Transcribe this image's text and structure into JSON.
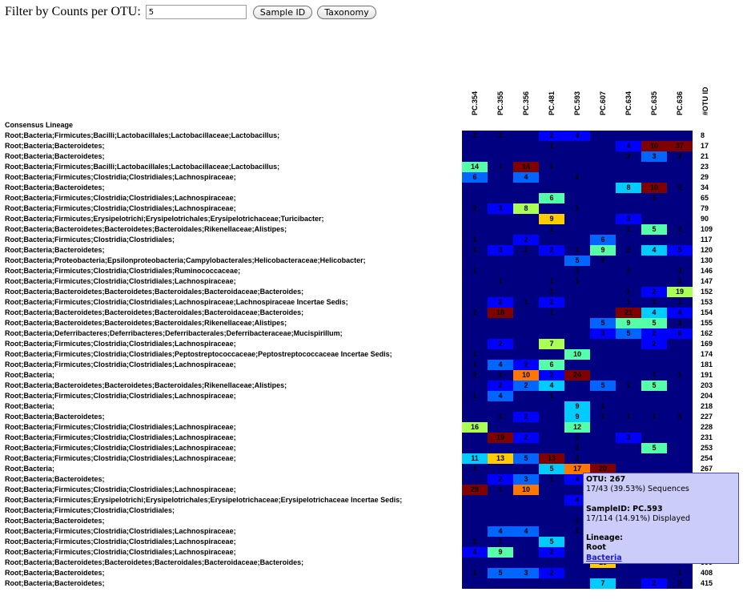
{
  "filter": {
    "label": "Filter by Counts per OTU:",
    "value": "5",
    "sample_id_button": "Sample ID",
    "taxonomy_button": "Taxonomy"
  },
  "table": {
    "lineage_header": "Consensus Lineage",
    "otu_header": "#OTU ID",
    "samples": [
      "PC.354",
      "PC.355",
      "PC.356",
      "PC.481",
      "PC.593",
      "PC.607",
      "PC.634",
      "PC.635",
      "PC.636"
    ],
    "rows": [
      {
        "lineage": "Root;Bacteria;Firmicutes;Bacilli;Lactobacillales;Lactobacillaceae;Lactobacillus;",
        "otu": "8",
        "values": [
          "1",
          "1",
          "",
          "2",
          "4",
          "",
          "",
          "",
          ""
        ]
      },
      {
        "lineage": "Root;Bacteria;Bacteroidetes;",
        "otu": "17",
        "values": [
          "",
          "",
          "",
          "1",
          "",
          "",
          "4",
          "10",
          "37"
        ]
      },
      {
        "lineage": "Root;Bacteria;Bacteroidetes;",
        "otu": "21",
        "values": [
          "",
          "",
          "",
          "",
          "",
          "",
          "2",
          "3",
          "2"
        ]
      },
      {
        "lineage": "Root;Bacteria;Firmicutes;Bacilli;Lactobacillales;Lactobacillaceae;Lactobacillus;",
        "otu": "23",
        "values": [
          "14",
          "1",
          "14",
          "1",
          "",
          "",
          "",
          "",
          ""
        ]
      },
      {
        "lineage": "Root;Bacteria;Firmicutes;Clostridia;Clostridiales;Lachnospiraceae;",
        "otu": "29",
        "values": [
          "6",
          "",
          "4",
          "",
          "2",
          "",
          "",
          "",
          ""
        ]
      },
      {
        "lineage": "Root;Bacteria;Bacteroidetes;",
        "otu": "34",
        "values": [
          "",
          "",
          "",
          "",
          "",
          "",
          "8",
          "10",
          "2"
        ]
      },
      {
        "lineage": "Root;Bacteria;Firmicutes;Clostridia;Clostridiales;Lachnospiraceae;",
        "otu": "65",
        "values": [
          "",
          "",
          "",
          "6",
          "",
          "",
          "",
          "1",
          ""
        ]
      },
      {
        "lineage": "Root;Bacteria;Firmicutes;Clostridia;Clostridiales;Lachnospiraceae;",
        "otu": "79",
        "values": [
          "2",
          "3",
          "8",
          "",
          "1",
          "",
          "",
          "",
          ""
        ]
      },
      {
        "lineage": "Root;Bacteria;Firmicutes;Erysipelotrichi;Erysipelotrichales;Erysipelotrichaceae;Turicibacter;",
        "otu": "90",
        "values": [
          "",
          "",
          "",
          "9",
          "",
          "",
          "3",
          "",
          ""
        ]
      },
      {
        "lineage": "Root;Bacteria;Bacteroidetes;Bacteroidetes;Bacteroidales;Rikenellaceae;Alistipes;",
        "otu": "109",
        "values": [
          "",
          "",
          "",
          "1",
          "",
          "",
          "1",
          "5",
          "2"
        ]
      },
      {
        "lineage": "Root;Bacteria;Firmicutes;Clostridia;Clostridiales;",
        "otu": "117",
        "values": [
          "1",
          "",
          "2",
          "",
          "",
          "6",
          "",
          "",
          ""
        ]
      },
      {
        "lineage": "Root;Bacteria;Bacteroidetes;",
        "otu": "120",
        "values": [
          "1",
          "3",
          "1",
          "2",
          "1",
          "9",
          "2",
          "4",
          "5"
        ]
      },
      {
        "lineage": "Root;Bacteria;Proteobacteria;Epsilonproteobacteria;Campylobacterales;Helicobacteraceae;Helicobacter;",
        "otu": "130",
        "values": [
          "",
          "",
          "",
          "",
          "5",
          "2",
          "",
          "",
          ""
        ]
      },
      {
        "lineage": "Root;Bacteria;Firmicutes;Clostridia;Clostridiales;Ruminococcaceae;",
        "otu": "146",
        "values": [
          "1",
          "",
          "",
          "",
          "2",
          "",
          "2",
          "",
          "3"
        ]
      },
      {
        "lineage": "Root;Bacteria;Firmicutes;Clostridia;Clostridiales;Lachnospiraceae;",
        "otu": "147",
        "values": [
          "",
          "1",
          "",
          "1",
          "1",
          "",
          "",
          "",
          "3"
        ]
      },
      {
        "lineage": "Root;Bacteria;Bacteroidetes;Bacteroidetes;Bacteroidales;Bacteroidaceae;Bacteroides;",
        "otu": "152",
        "values": [
          "",
          "",
          "",
          "1",
          "",
          "",
          "1",
          "2",
          "19"
        ]
      },
      {
        "lineage": "Root;Bacteria;Firmicutes;Clostridia;Clostridiales;Lachnospiraceae;Lachnospiraceae Incertae Sedis;",
        "otu": "153",
        "values": [
          "",
          "2",
          "1",
          "2",
          "",
          "",
          "1",
          "1",
          "1"
        ]
      },
      {
        "lineage": "Root;Bacteria;Bacteroidetes;Bacteroidetes;Bacteroidales;Bacteroidaceae;Bacteroides;",
        "otu": "154",
        "values": [
          "2",
          "18",
          "",
          "1",
          "",
          "",
          "21",
          "4",
          "4"
        ]
      },
      {
        "lineage": "Root;Bacteria;Bacteroidetes;Bacteroidetes;Bacteroidales;Rikenellaceae;Alistipes;",
        "otu": "155",
        "values": [
          "",
          "",
          "",
          "",
          "",
          "5",
          "9",
          "5",
          "3"
        ]
      },
      {
        "lineage": "Root;Bacteria;Deferribacteres;Deferribacteres;Deferribacterales;Deferribacteraceae;Mucispirillum;",
        "otu": "162",
        "values": [
          "",
          "",
          "",
          "",
          "",
          "3",
          "5",
          "2",
          "6"
        ]
      },
      {
        "lineage": "Root;Bacteria;Firmicutes;Clostridia;Clostridiales;Lachnospiraceae;",
        "otu": "169",
        "values": [
          "",
          "2",
          "",
          "7",
          "",
          "",
          "",
          "2",
          ""
        ]
      },
      {
        "lineage": "Root;Bacteria;Firmicutes;Clostridia;Clostridiales;Peptostreptococcaceae;Peptostreptococcaceae Incertae Sedis;",
        "otu": "174",
        "values": [
          "1",
          "",
          "",
          "",
          "10",
          "",
          "",
          "",
          ""
        ]
      },
      {
        "lineage": "Root;Bacteria;Firmicutes;Clostridia;Clostridiales;Lachnospiraceae;",
        "otu": "181",
        "values": [
          "1",
          "4",
          "2",
          "6",
          "",
          "",
          "",
          "",
          ""
        ]
      },
      {
        "lineage": "Root;Bacteria;",
        "otu": "191",
        "values": [
          "2",
          "1",
          "10",
          "2",
          "24",
          "",
          "",
          "1",
          "1"
        ]
      },
      {
        "lineage": "Root;Bacteria;Bacteroidetes;Bacteroidetes;Bacteroidales;Rikenellaceae;Alistipes;",
        "otu": "203",
        "values": [
          "",
          "2",
          "2",
          "4",
          "",
          "5",
          "1",
          "5",
          ""
        ]
      },
      {
        "lineage": "Root;Bacteria;Firmicutes;Clostridia;Clostridiales;Lachnospiraceae;",
        "otu": "204",
        "values": [
          "1",
          "4",
          "",
          "1",
          "",
          "",
          "",
          "",
          ""
        ]
      },
      {
        "lineage": "Root;Bacteria;",
        "otu": "218",
        "values": [
          "",
          "",
          "",
          "",
          "9",
          "1",
          "",
          "",
          ""
        ]
      },
      {
        "lineage": "Root;Bacteria;Bacteroidetes;",
        "otu": "227",
        "values": [
          "",
          "1",
          "2",
          "",
          "9",
          "1",
          "1",
          "1",
          "3"
        ]
      },
      {
        "lineage": "Root;Bacteria;Firmicutes;Clostridia;Clostridiales;Lachnospiraceae;",
        "otu": "228",
        "values": [
          "16",
          "",
          "",
          "",
          "12",
          "",
          "",
          "",
          ""
        ]
      },
      {
        "lineage": "Root;Bacteria;Firmicutes;Clostridia;Clostridiales;Lachnospiraceae;",
        "otu": "231",
        "values": [
          "",
          "19",
          "2",
          "",
          "2",
          "",
          "3",
          "",
          ""
        ]
      },
      {
        "lineage": "Root;Bacteria;Firmicutes;Clostridia;Clostridiales;Lachnospiraceae;",
        "otu": "253",
        "values": [
          "",
          "",
          "",
          "",
          "2",
          "",
          "",
          "5",
          ""
        ]
      },
      {
        "lineage": "Root;Bacteria;Firmicutes;Clostridia;Clostridiales;Lachnospiraceae;",
        "otu": "254",
        "values": [
          "11",
          "13",
          "5",
          "13",
          "2",
          "",
          "",
          "",
          ""
        ]
      },
      {
        "lineage": "Root;Bacteria;",
        "otu": "267",
        "values": [
          "1",
          "",
          "",
          "5",
          "17",
          "20",
          "",
          "",
          ""
        ]
      },
      {
        "lineage": "Root;Bacteria;Bacteroidetes;",
        "otu": "",
        "values": [
          "",
          "2",
          "3",
          "1",
          "4",
          "",
          "",
          "",
          ""
        ]
      },
      {
        "lineage": "Root;Bacteria;Firmicutes;Clostridia;Clostridiales;Lachnospiraceae;",
        "otu": "",
        "values": [
          "29",
          "1",
          "10",
          "",
          "",
          "",
          "",
          "",
          ""
        ]
      },
      {
        "lineage": "Root;Bacteria;Firmicutes;Erysipelotrichi;Erysipelotrichales;Erysipelotrichaceae;Erysipelotrichaceae Incertae Sedis;",
        "otu": "",
        "values": [
          "",
          "",
          "",
          "",
          "4",
          "",
          "",
          "",
          ""
        ]
      },
      {
        "lineage": "Root;Bacteria;Firmicutes;Clostridia;Clostridiales;",
        "otu": "",
        "values": [
          "",
          "",
          "",
          "",
          "",
          "",
          "",
          "",
          ""
        ]
      },
      {
        "lineage": "Root;Bacteria;Bacteroidetes;",
        "otu": "",
        "values": [
          "",
          "",
          "",
          "",
          "2",
          "",
          "",
          "",
          ""
        ]
      },
      {
        "lineage": "Root;Bacteria;Firmicutes;Clostridia;Clostridiales;Lachnospiraceae;",
        "otu": "",
        "values": [
          "",
          "4",
          "4",
          "",
          "1",
          "",
          "",
          "",
          ""
        ]
      },
      {
        "lineage": "Root;Bacteria;Firmicutes;Clostridia;Clostridiales;Lachnospiraceae;",
        "otu": "",
        "values": [
          "2",
          "1",
          "",
          "5",
          "",
          "",
          "",
          "",
          ""
        ]
      },
      {
        "lineage": "Root;Bacteria;Firmicutes;Clostridia;Clostridiales;Lachnospiraceae;",
        "otu": "",
        "values": [
          "4",
          "9",
          "",
          "2",
          "",
          "",
          "",
          "",
          ""
        ]
      },
      {
        "lineage": "Root;Bacteria;Bacteroidetes;Bacteroidetes;Bacteroidales;Bacteroidaceae;Bacteroides;",
        "otu": "399",
        "values": [
          "",
          "",
          "",
          "",
          "",
          "13",
          "",
          "",
          ""
        ]
      },
      {
        "lineage": "Root;Bacteria;Bacteroidetes;",
        "otu": "408",
        "values": [
          "1",
          "5",
          "3",
          "2",
          "",
          "",
          "",
          "",
          "1"
        ]
      },
      {
        "lineage": "Root;Bacteria;Bacteroidetes;",
        "otu": "415",
        "values": [
          "",
          "",
          "",
          "",
          "",
          "7",
          "",
          "2",
          "2"
        ]
      }
    ]
  },
  "colors": {
    "zero": "#000080",
    "blue": "#0000ff",
    "mid_blue": "#0066ff",
    "cyan": "#00ccff",
    "aquamarine": "#55ffaa",
    "yellow_green": "#aaff55",
    "yellow": "#ffcc00",
    "orange": "#ff7700",
    "dark_red": "#800000"
  },
  "tooltip": {
    "otu_line": "OTU: 267",
    "sequences_line": "17/43 (39.53%) Sequences",
    "sample_line": "SampleID: PC.593",
    "displayed_line": "17/114 (14.91%) Displayed",
    "lineage_label": "Lineage:",
    "lineage_root": "Root",
    "lineage_link": "Bacteria"
  }
}
